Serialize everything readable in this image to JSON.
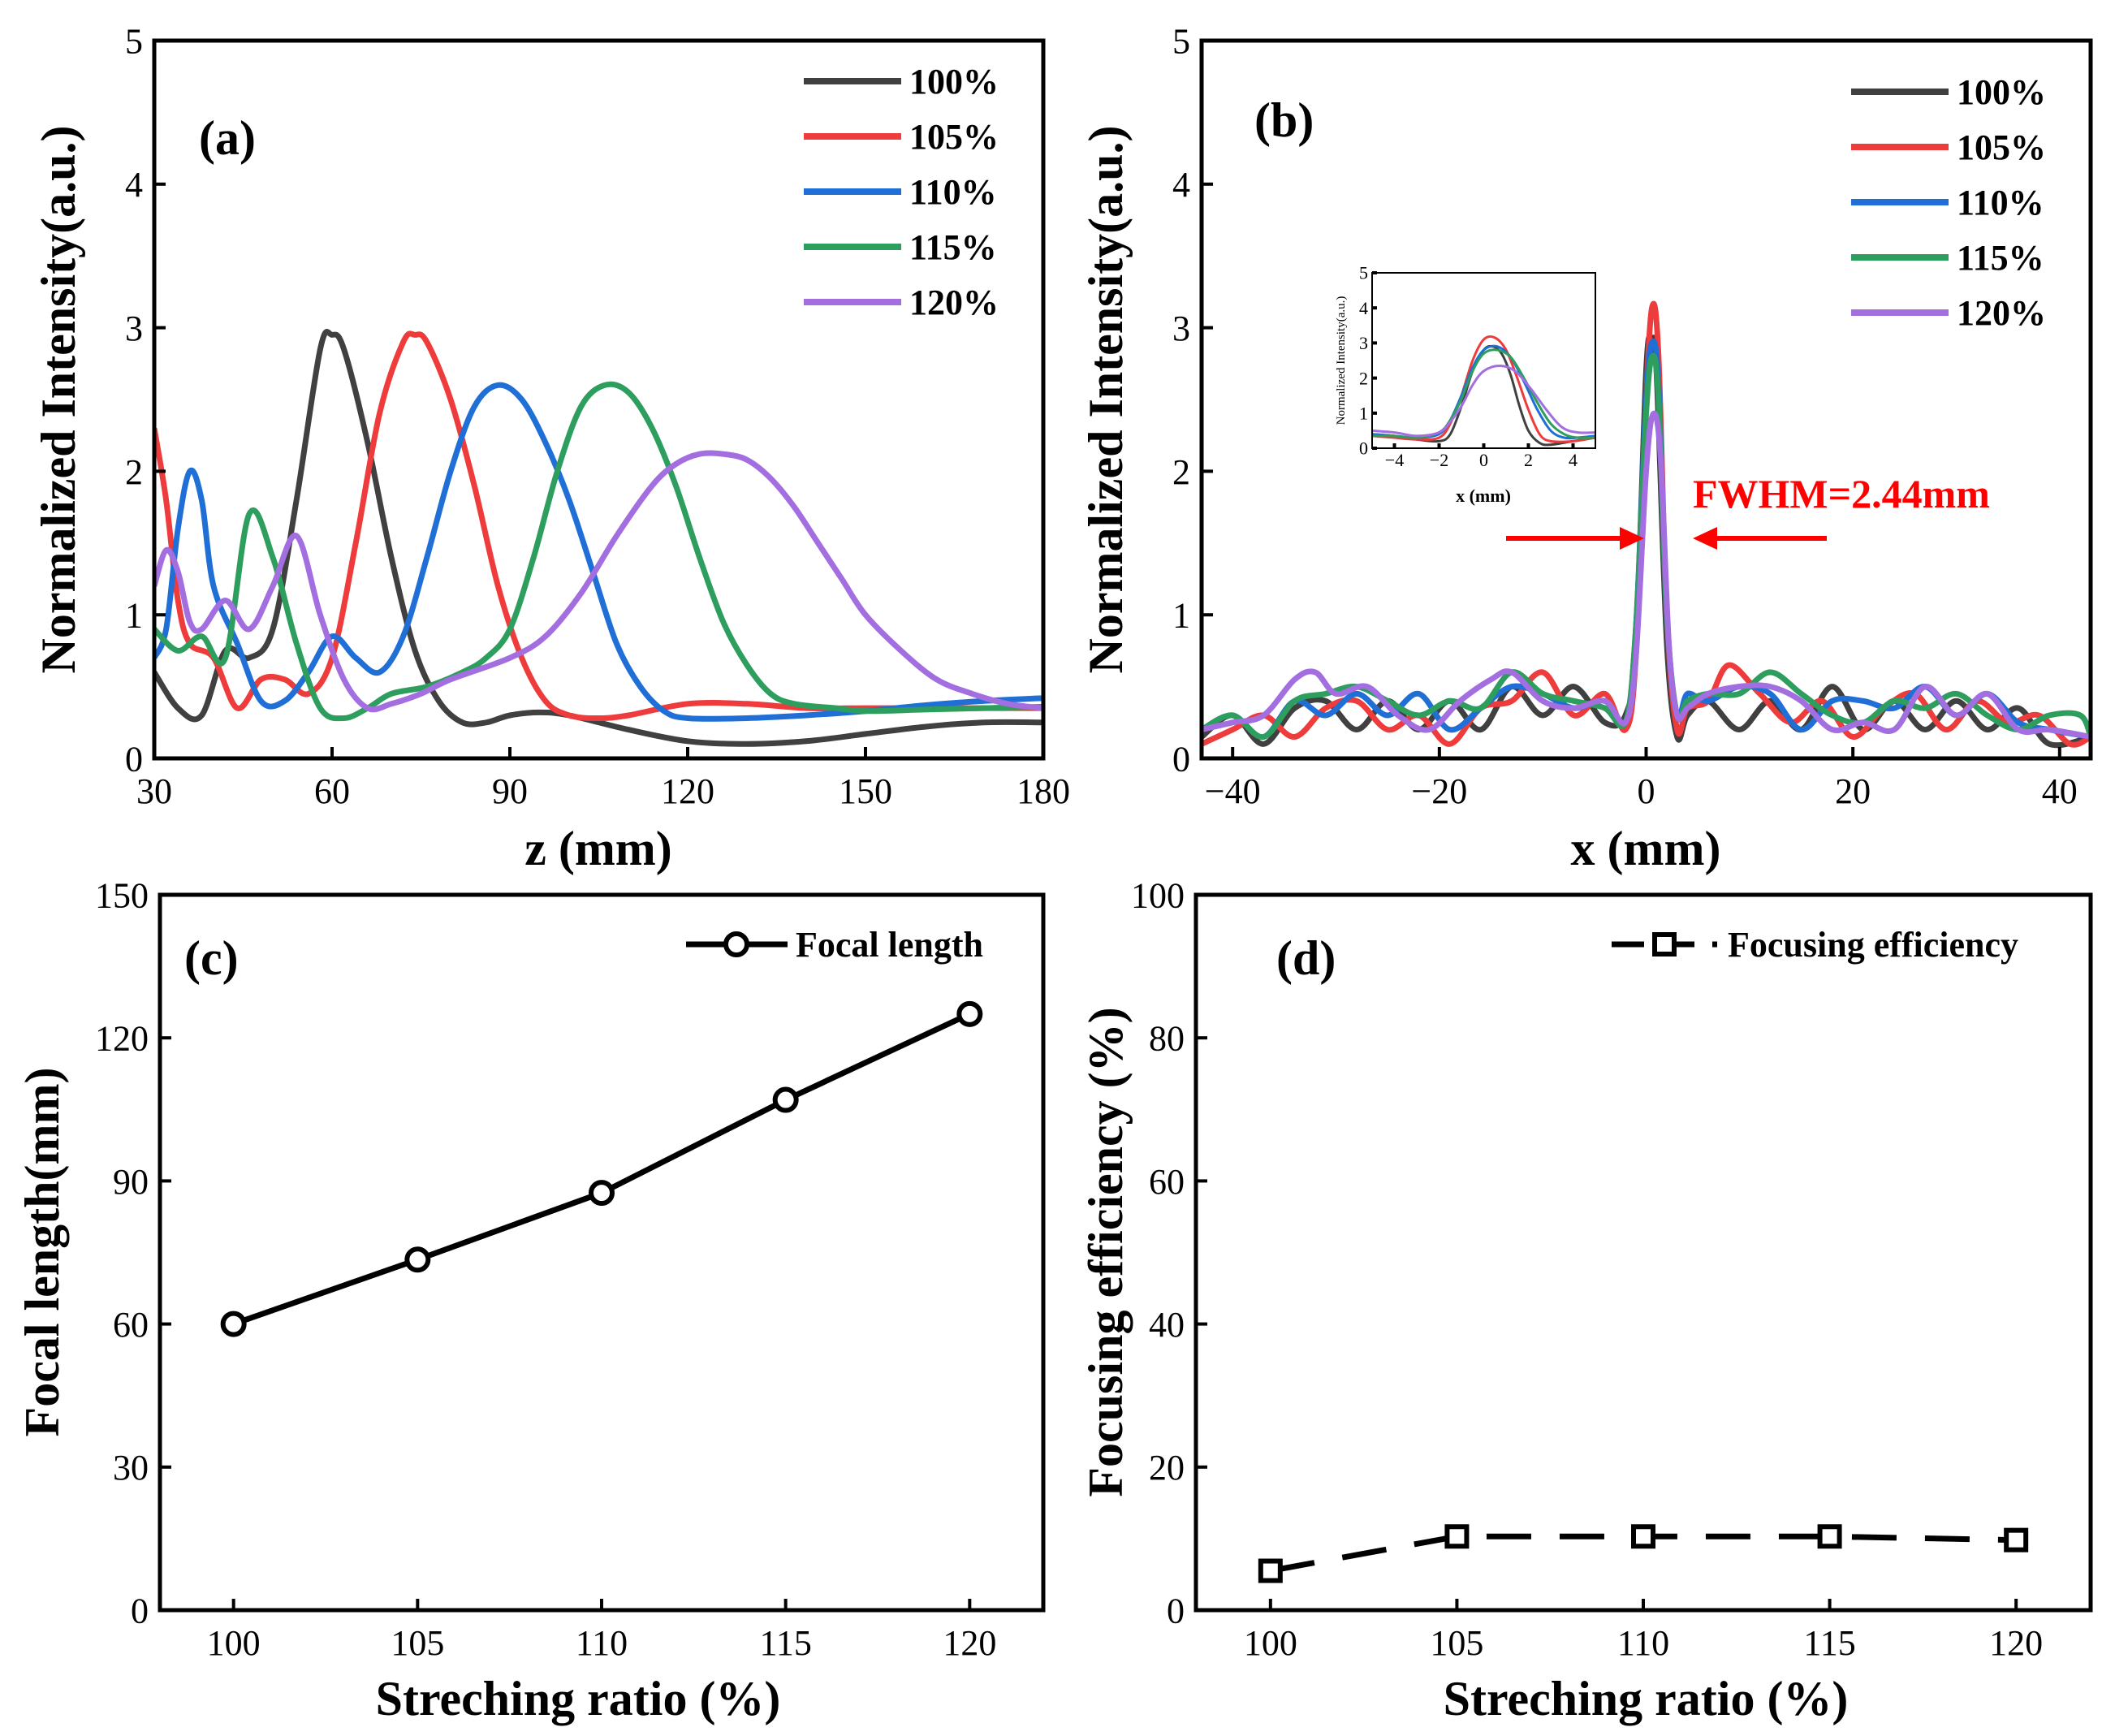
{
  "colors": {
    "100%": "#404040",
    "105%": "#ee3b3b",
    "110%": "#1f6fd6",
    "115%": "#2e9e5e",
    "120%": "#a36ee0",
    "annotation": "#ff0000",
    "axis": "#000000"
  },
  "chart_data": [
    {
      "panel": "(a)",
      "type": "line",
      "xlabel": "z (mm)",
      "ylabel": "Normalized Intensity(a.u.)",
      "xlim": [
        30,
        180
      ],
      "ylim": [
        0,
        5
      ],
      "xticks": [
        30,
        60,
        90,
        120,
        150,
        180
      ],
      "yticks": [
        0,
        1,
        2,
        3,
        4,
        5
      ],
      "legend_position": "top-right",
      "series": [
        {
          "name": "100%",
          "x": [
            30,
            34,
            38,
            42,
            46,
            50,
            54,
            58,
            60,
            62,
            66,
            70,
            74,
            78,
            82,
            86,
            90,
            95,
            100,
            110,
            120,
            130,
            140,
            150,
            160,
            170,
            180
          ],
          "y": [
            0.6,
            0.35,
            0.3,
            0.75,
            0.7,
            0.9,
            1.8,
            2.85,
            2.95,
            2.85,
            2.2,
            1.4,
            0.75,
            0.4,
            0.25,
            0.25,
            0.3,
            0.32,
            0.3,
            0.2,
            0.12,
            0.1,
            0.12,
            0.17,
            0.22,
            0.25,
            0.25
          ]
        },
        {
          "name": "105%",
          "x": [
            30,
            32,
            34,
            36,
            40,
            44,
            48,
            52,
            56,
            60,
            64,
            68,
            72,
            74,
            76,
            80,
            84,
            88,
            92,
            96,
            100,
            105,
            110,
            120,
            130,
            140,
            150,
            160,
            170,
            180
          ],
          "y": [
            2.3,
            1.8,
            1.1,
            0.8,
            0.7,
            0.35,
            0.55,
            0.55,
            0.45,
            0.7,
            1.5,
            2.4,
            2.9,
            2.95,
            2.9,
            2.5,
            1.9,
            1.2,
            0.7,
            0.4,
            0.3,
            0.28,
            0.3,
            0.38,
            0.38,
            0.35,
            0.35,
            0.35,
            0.35,
            0.35
          ]
        },
        {
          "name": "110%",
          "x": [
            30,
            32,
            34,
            36,
            38,
            40,
            44,
            48,
            52,
            56,
            60,
            64,
            68,
            72,
            76,
            80,
            84,
            88,
            92,
            96,
            100,
            104,
            108,
            112,
            116,
            120,
            130,
            140,
            150,
            160,
            170,
            180
          ],
          "y": [
            0.7,
            0.9,
            1.6,
            2.0,
            1.8,
            1.2,
            0.8,
            0.4,
            0.4,
            0.6,
            0.85,
            0.7,
            0.6,
            0.85,
            1.4,
            2.0,
            2.45,
            2.6,
            2.5,
            2.2,
            1.8,
            1.3,
            0.8,
            0.5,
            0.33,
            0.28,
            0.28,
            0.3,
            0.33,
            0.37,
            0.4,
            0.42
          ]
        },
        {
          "name": "115%",
          "x": [
            30,
            34,
            38,
            42,
            46,
            50,
            54,
            58,
            62,
            66,
            70,
            76,
            82,
            86,
            90,
            94,
            98,
            102,
            106,
            110,
            114,
            118,
            122,
            126,
            130,
            134,
            138,
            145,
            150,
            160,
            170,
            180
          ],
          "y": [
            0.9,
            0.75,
            0.85,
            0.7,
            1.7,
            1.4,
            0.8,
            0.35,
            0.28,
            0.35,
            0.45,
            0.5,
            0.6,
            0.7,
            0.9,
            1.4,
            2.0,
            2.45,
            2.6,
            2.55,
            2.3,
            1.9,
            1.4,
            0.95,
            0.65,
            0.45,
            0.38,
            0.35,
            0.33,
            0.34,
            0.35,
            0.36
          ]
        },
        {
          "name": "120%",
          "x": [
            30,
            32,
            34,
            36,
            38,
            42,
            46,
            50,
            54,
            58,
            62,
            66,
            70,
            75,
            80,
            90,
            96,
            102,
            108,
            114,
            118,
            122,
            126,
            130,
            134,
            138,
            142,
            146,
            150,
            156,
            162,
            168,
            174,
            180
          ],
          "y": [
            1.2,
            1.45,
            1.3,
            0.95,
            0.9,
            1.1,
            0.9,
            1.2,
            1.55,
            1.0,
            0.55,
            0.35,
            0.38,
            0.45,
            0.55,
            0.7,
            0.85,
            1.15,
            1.55,
            1.9,
            2.05,
            2.12,
            2.12,
            2.08,
            1.95,
            1.75,
            1.5,
            1.25,
            1.0,
            0.75,
            0.55,
            0.45,
            0.38,
            0.35
          ]
        }
      ]
    },
    {
      "panel": "(b)",
      "type": "line",
      "xlabel": "x (mm)",
      "ylabel": "Normalized Intensity(a.u.)",
      "xlim": [
        -43,
        43
      ],
      "ylim": [
        0,
        5
      ],
      "xticks": [
        -40,
        -20,
        0,
        20,
        40
      ],
      "yticks": [
        0,
        1,
        2,
        3,
        4,
        5
      ],
      "legend_position": "top-right",
      "annotation": "FWHM=2.44mm",
      "series": [
        {
          "name": "100%",
          "x": [
            -43,
            -40,
            -37,
            -34,
            -31,
            -28,
            -25,
            -22,
            -19,
            -16,
            -13,
            -10,
            -7,
            -4,
            -2,
            -1,
            0,
            0.5,
            1,
            2,
            3,
            4,
            6,
            9,
            12,
            15,
            18,
            21,
            24,
            27,
            30,
            33,
            36,
            39,
            43
          ],
          "y": [
            0.15,
            0.3,
            0.1,
            0.35,
            0.4,
            0.2,
            0.4,
            0.2,
            0.4,
            0.2,
            0.5,
            0.3,
            0.5,
            0.25,
            0.3,
            0.8,
            2.7,
            2.9,
            2.7,
            0.8,
            0.15,
            0.3,
            0.4,
            0.2,
            0.4,
            0.2,
            0.5,
            0.2,
            0.4,
            0.2,
            0.4,
            0.2,
            0.35,
            0.1,
            0.15
          ]
        },
        {
          "name": "105%",
          "x": [
            -43,
            -40,
            -37,
            -34,
            -31,
            -28,
            -25,
            -22,
            -19,
            -16,
            -13,
            -10,
            -7,
            -4,
            -2,
            -1,
            0,
            0.6,
            1.2,
            2,
            3,
            4,
            6,
            8,
            11,
            14,
            17,
            20,
            23,
            26,
            29,
            32,
            35,
            38,
            41,
            43
          ],
          "y": [
            0.1,
            0.2,
            0.3,
            0.15,
            0.35,
            0.4,
            0.2,
            0.3,
            0.1,
            0.35,
            0.4,
            0.6,
            0.3,
            0.45,
            0.2,
            0.7,
            2.5,
            3.15,
            2.8,
            1.0,
            0.2,
            0.35,
            0.4,
            0.65,
            0.45,
            0.25,
            0.4,
            0.15,
            0.35,
            0.45,
            0.2,
            0.4,
            0.25,
            0.3,
            0.1,
            0.15
          ]
        },
        {
          "name": "110%",
          "x": [
            -43,
            -40,
            -37,
            -34,
            -31,
            -28,
            -25,
            -22,
            -19,
            -16,
            -13,
            -10,
            -7,
            -4,
            -2,
            -1,
            0,
            0.6,
            1.2,
            2,
            3,
            4,
            6,
            9,
            12,
            15,
            18,
            21,
            24,
            27,
            30,
            33,
            36,
            39,
            43
          ],
          "y": [
            0.2,
            0.3,
            0.15,
            0.4,
            0.3,
            0.45,
            0.3,
            0.45,
            0.2,
            0.35,
            0.5,
            0.45,
            0.35,
            0.4,
            0.25,
            0.9,
            2.5,
            2.9,
            2.6,
            1.0,
            0.3,
            0.45,
            0.4,
            0.5,
            0.45,
            0.2,
            0.4,
            0.4,
            0.35,
            0.5,
            0.3,
            0.45,
            0.25,
            0.2,
            0.15
          ]
        },
        {
          "name": "115%",
          "x": [
            -43,
            -40,
            -37,
            -34,
            -31,
            -28,
            -25,
            -22,
            -19,
            -16,
            -13,
            -10,
            -7,
            -4,
            -2,
            -1,
            0,
            0.6,
            1.2,
            2,
            3,
            4,
            6,
            9,
            12,
            15,
            18,
            21,
            24,
            27,
            30,
            33,
            36,
            39,
            42,
            43
          ],
          "y": [
            0.2,
            0.3,
            0.15,
            0.4,
            0.45,
            0.5,
            0.4,
            0.3,
            0.4,
            0.35,
            0.6,
            0.45,
            0.4,
            0.35,
            0.25,
            0.9,
            2.4,
            2.8,
            2.5,
            1.0,
            0.3,
            0.4,
            0.45,
            0.45,
            0.6,
            0.45,
            0.3,
            0.25,
            0.4,
            0.35,
            0.45,
            0.3,
            0.2,
            0.3,
            0.3,
            0.15
          ]
        },
        {
          "name": "120%",
          "x": [
            -43,
            -40,
            -37,
            -34,
            -32,
            -30,
            -27,
            -24,
            -21,
            -18,
            -15,
            -13,
            -10,
            -7,
            -4,
            -2,
            -1,
            0,
            0.7,
            1.4,
            2.2,
            3,
            4,
            6,
            9,
            12,
            15,
            18,
            21,
            24,
            27,
            30,
            33,
            36,
            39,
            43
          ],
          "y": [
            0.2,
            0.25,
            0.3,
            0.55,
            0.6,
            0.45,
            0.5,
            0.3,
            0.2,
            0.4,
            0.55,
            0.6,
            0.4,
            0.35,
            0.4,
            0.25,
            0.7,
            2.0,
            2.4,
            2.1,
            0.8,
            0.3,
            0.35,
            0.45,
            0.5,
            0.5,
            0.4,
            0.2,
            0.25,
            0.2,
            0.5,
            0.3,
            0.45,
            0.2,
            0.2,
            0.15
          ]
        }
      ],
      "inset": {
        "type": "line",
        "xlabel": "x (mm)",
        "ylabel": "Normalized Intensity(a.u.)",
        "xlim": [
          -5,
          5
        ],
        "ylim": [
          0,
          5
        ],
        "xticks": [
          -4,
          -2,
          0,
          2,
          4
        ],
        "yticks": [
          0,
          1,
          2,
          3,
          4,
          5
        ],
        "series": [
          {
            "name": "100%",
            "x": [
              -5,
              -4,
              -3,
              -2,
              -1.5,
              -1,
              -0.5,
              0,
              0.4,
              0.8,
              1.2,
              1.6,
              2,
              2.5,
              3,
              4,
              5
            ],
            "y": [
              0.4,
              0.35,
              0.25,
              0.2,
              0.4,
              1.2,
              2.2,
              2.8,
              2.9,
              2.7,
              2.1,
              1.2,
              0.5,
              0.15,
              0.1,
              0.2,
              0.3
            ]
          },
          {
            "name": "105%",
            "x": [
              -5,
              -4,
              -3,
              -2,
              -1.5,
              -1,
              -0.5,
              0,
              0.5,
              1,
              1.5,
              2,
              2.5,
              3,
              4,
              5
            ],
            "y": [
              0.35,
              0.3,
              0.25,
              0.3,
              0.7,
              1.5,
              2.5,
              3.1,
              3.15,
              2.8,
              2.0,
              1.1,
              0.4,
              0.2,
              0.2,
              0.3
            ]
          },
          {
            "name": "110%",
            "x": [
              -5,
              -4,
              -3,
              -2,
              -1.5,
              -1,
              -0.5,
              0,
              0.6,
              1.2,
              1.8,
              2.4,
              3,
              3.6,
              4.2,
              5
            ],
            "y": [
              0.4,
              0.35,
              0.3,
              0.4,
              0.8,
              1.5,
              2.3,
              2.8,
              2.9,
              2.6,
              1.9,
              1.1,
              0.5,
              0.3,
              0.3,
              0.35
            ]
          },
          {
            "name": "115%",
            "x": [
              -5,
              -4,
              -3,
              -2,
              -1.5,
              -1,
              -0.5,
              0,
              0.6,
              1.2,
              1.8,
              2.4,
              3,
              3.6,
              4.2,
              5
            ],
            "y": [
              0.35,
              0.35,
              0.3,
              0.45,
              0.8,
              1.4,
              2.2,
              2.7,
              2.8,
              2.6,
              2.0,
              1.3,
              0.7,
              0.4,
              0.3,
              0.3
            ]
          },
          {
            "name": "120%",
            "x": [
              -5,
              -4,
              -3,
              -2,
              -1.5,
              -1,
              -0.5,
              0,
              0.7,
              1.4,
              2.1,
              2.8,
              3.5,
              4.2,
              5
            ],
            "y": [
              0.5,
              0.45,
              0.35,
              0.45,
              0.75,
              1.2,
              1.8,
              2.2,
              2.35,
              2.2,
              1.7,
              1.1,
              0.6,
              0.45,
              0.45
            ]
          }
        ]
      }
    },
    {
      "panel": "(c)",
      "type": "line",
      "xlabel": "Streching ratio (%)",
      "ylabel": "Focal length(mm)",
      "xlim": [
        98,
        122
      ],
      "ylim": [
        0,
        150
      ],
      "xticks": [
        100,
        105,
        110,
        115,
        120
      ],
      "yticks": [
        0,
        30,
        60,
        90,
        120,
        150
      ],
      "legend_position": "top-right",
      "series": [
        {
          "name": "Focal length",
          "marker": "circle",
          "x": [
            100,
            105,
            110,
            115,
            120
          ],
          "y": [
            60,
            73.5,
            87.5,
            107,
            125
          ]
        }
      ]
    },
    {
      "panel": "(d)",
      "type": "line",
      "xlabel": "Streching ratio (%)",
      "ylabel": "Focusing efficiency (%)",
      "xlim": [
        98,
        122
      ],
      "ylim": [
        0,
        100
      ],
      "xticks": [
        100,
        105,
        110,
        115,
        120
      ],
      "yticks": [
        0,
        20,
        40,
        60,
        80,
        100
      ],
      "legend_position": "top-right",
      "series": [
        {
          "name": "Focusing efficiency",
          "marker": "square",
          "dashed": true,
          "x": [
            100,
            105,
            110,
            115,
            120
          ],
          "y": [
            5.5,
            10.3,
            10.3,
            10.3,
            9.8
          ]
        }
      ]
    }
  ]
}
